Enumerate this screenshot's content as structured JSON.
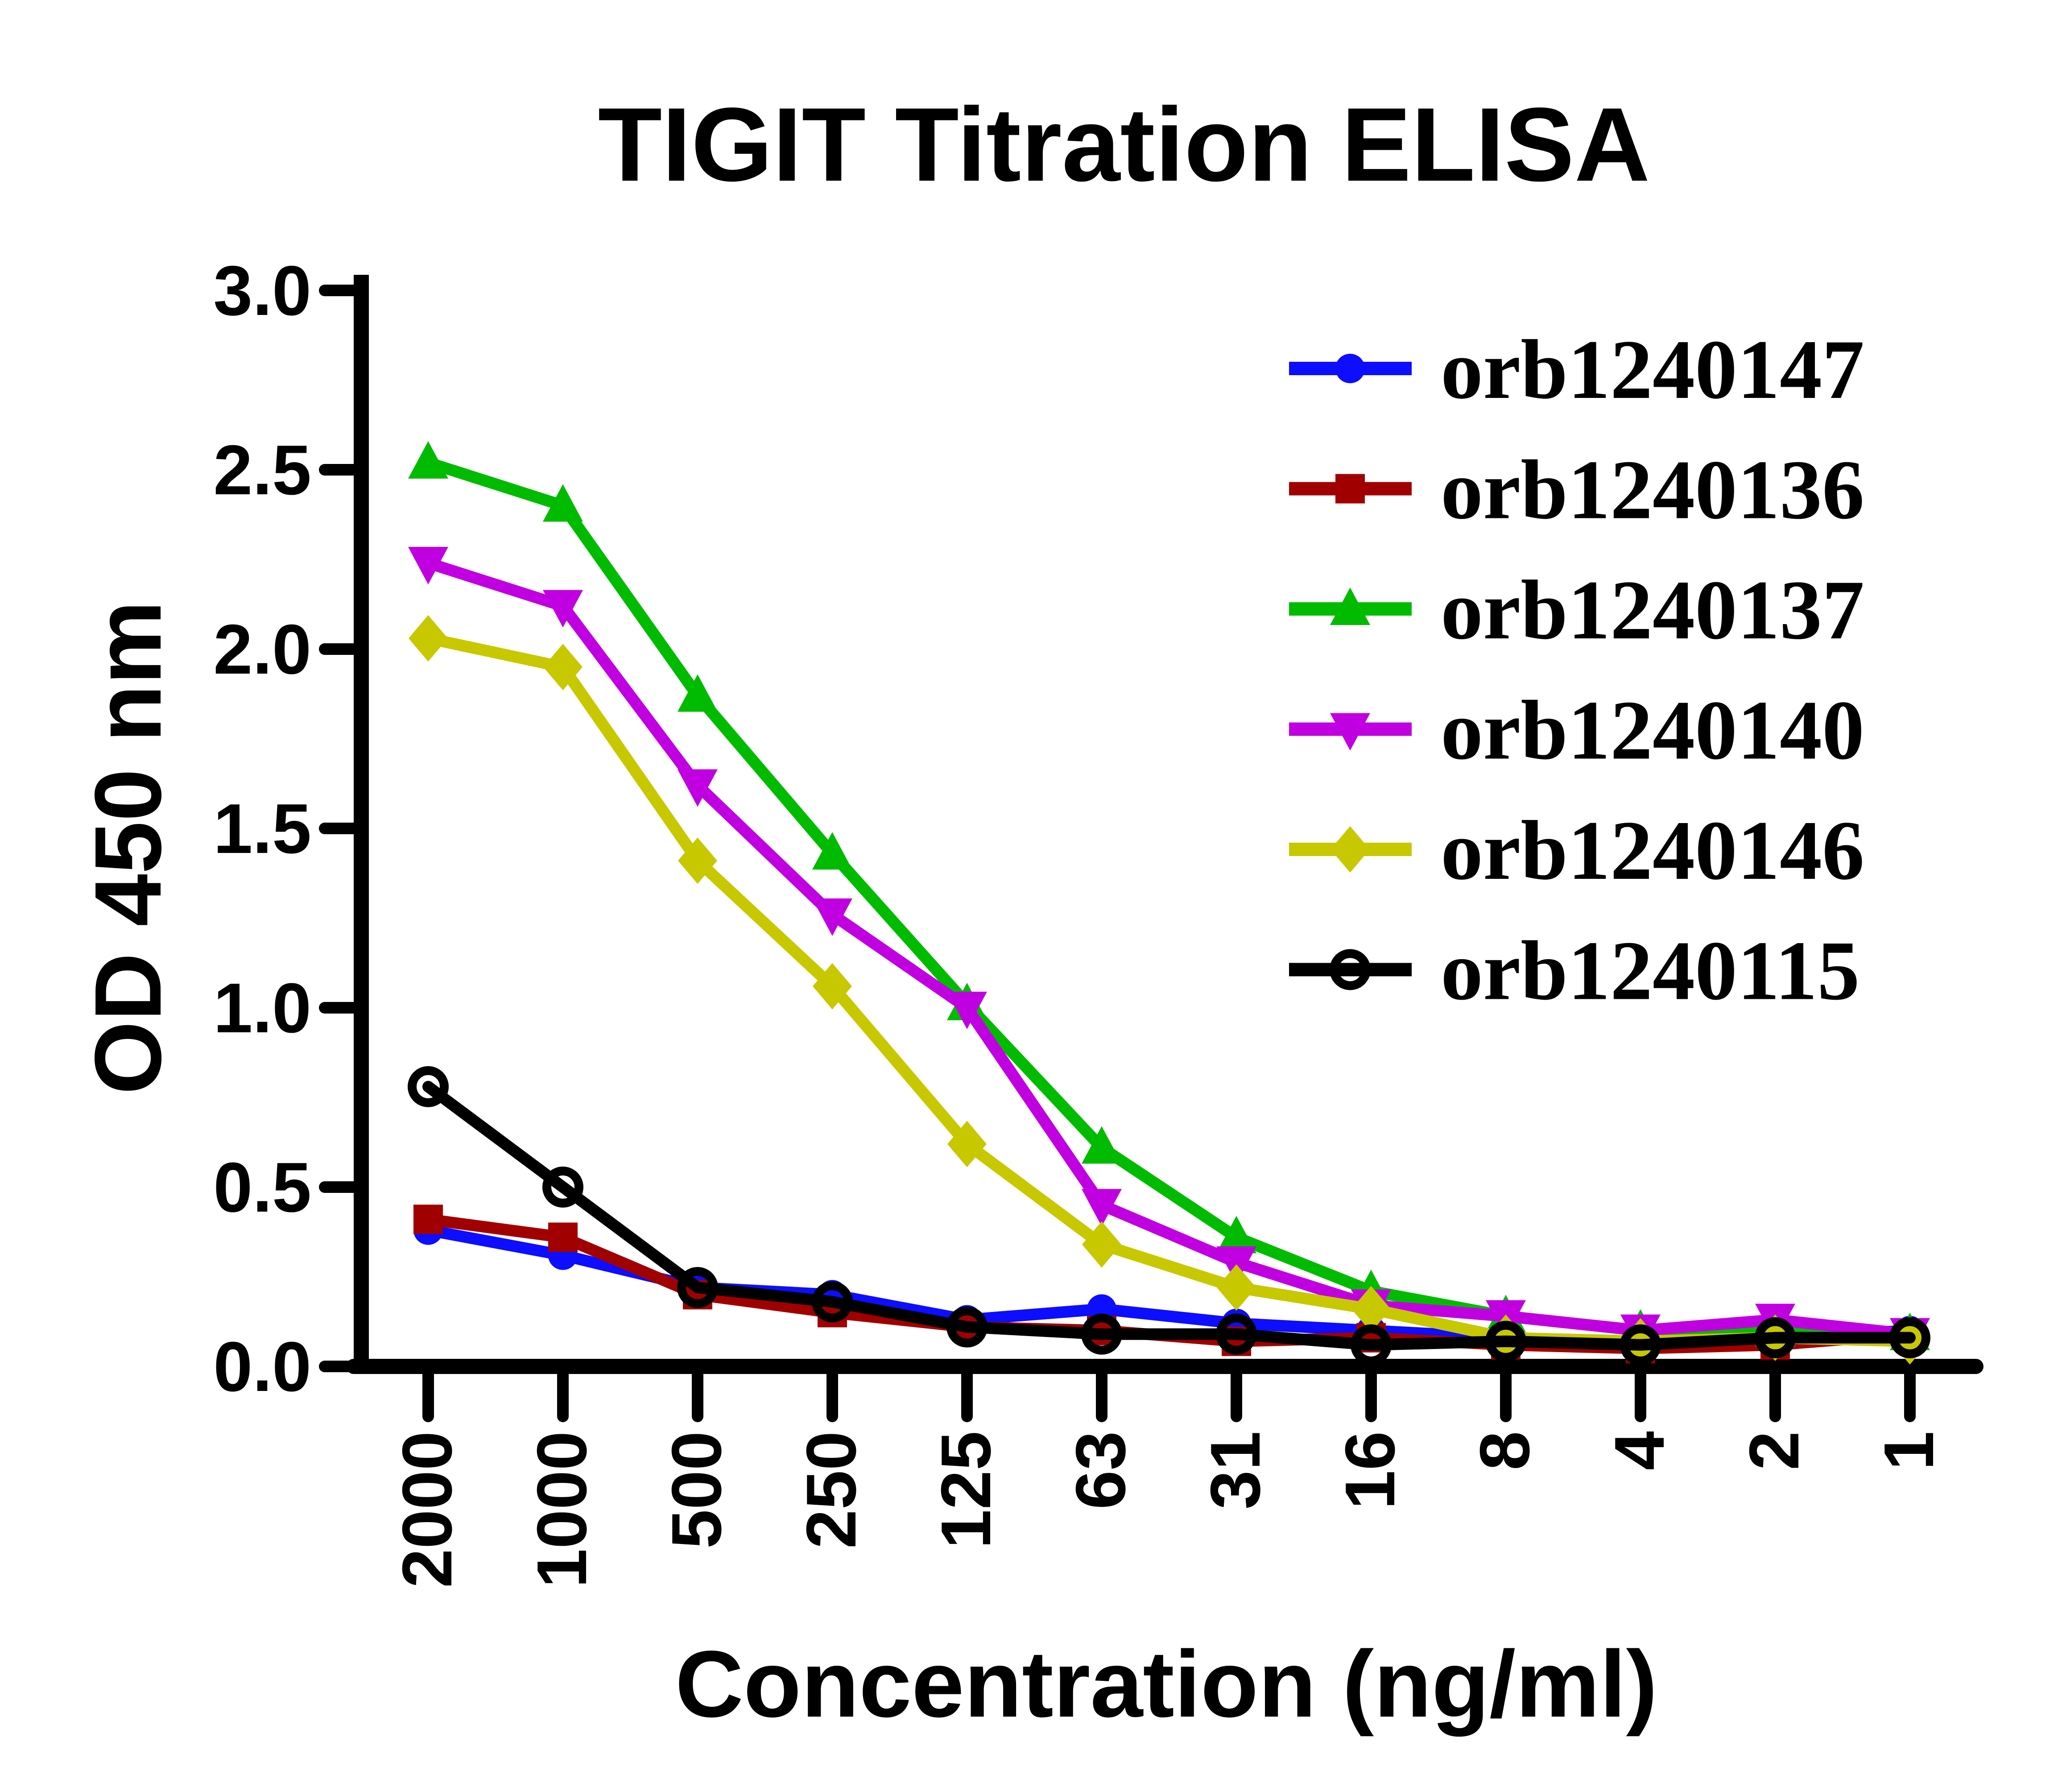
{
  "chart_data": {
    "type": "line",
    "title": "TIGIT Titration ELISA",
    "xlabel": "Concentration (ng/ml)",
    "ylabel": "OD 450 nm",
    "x_categories": [
      "2000",
      "1000",
      "500",
      "250",
      "125",
      "63",
      "31",
      "16",
      "8",
      "4",
      "2",
      "1"
    ],
    "y_ticks": [
      "0.0",
      "0.5",
      "1.0",
      "1.5",
      "2.0",
      "2.5",
      "3.0"
    ],
    "ylim": [
      0.0,
      3.0
    ],
    "grid": false,
    "legend_position": "top-right",
    "axis_color": "#000000",
    "series": [
      {
        "name": "orb1240147",
        "marker": "circle",
        "color": "#0d0dff",
        "values": [
          0.38,
          0.31,
          0.22,
          0.2,
          0.13,
          0.16,
          0.12,
          0.1,
          0.08,
          0.06,
          0.08,
          0.1
        ]
      },
      {
        "name": "orb1240136",
        "marker": "square",
        "color": "#a10000",
        "values": [
          0.41,
          0.36,
          0.2,
          0.15,
          0.11,
          0.1,
          0.07,
          0.08,
          0.06,
          0.05,
          0.06,
          0.09
        ]
      },
      {
        "name": "orb1240137",
        "marker": "triangle-up",
        "color": "#00bb00",
        "values": [
          2.52,
          2.4,
          1.87,
          1.43,
          1.01,
          0.61,
          0.36,
          0.21,
          0.14,
          0.1,
          0.1,
          0.09
        ]
      },
      {
        "name": "orb1240140",
        "marker": "triangle-down",
        "color": "#c000e0",
        "values": [
          2.24,
          2.12,
          1.62,
          1.26,
          1.0,
          0.45,
          0.29,
          0.17,
          0.14,
          0.1,
          0.13,
          0.09
        ]
      },
      {
        "name": "orb1240146",
        "marker": "diamond",
        "color": "#c8c800",
        "values": [
          2.03,
          1.95,
          1.41,
          1.06,
          0.62,
          0.34,
          0.22,
          0.16,
          0.08,
          0.07,
          0.08,
          0.07
        ]
      },
      {
        "name": "orb1240115",
        "marker": "open-circle",
        "color": "#000000",
        "values": [
          0.78,
          0.5,
          0.22,
          0.18,
          0.11,
          0.09,
          0.09,
          0.06,
          0.07,
          0.06,
          0.08,
          0.08
        ]
      }
    ]
  }
}
